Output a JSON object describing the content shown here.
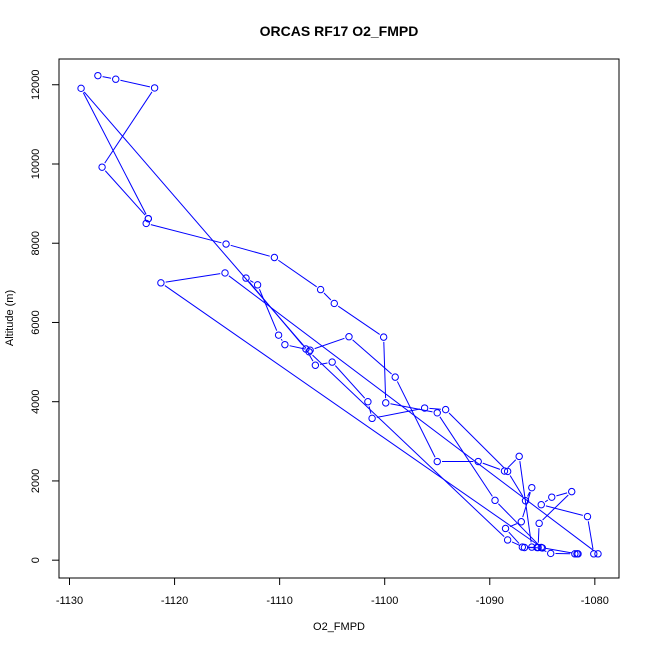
{
  "chart_data": {
    "type": "line",
    "title": "ORCAS RF17 O2_FMPD",
    "xlabel": "O2_FMPD",
    "ylabel": "Altitude (m)",
    "xlim": [
      -1131,
      -1077.7
    ],
    "ylim": [
      -450,
      12650
    ],
    "xticks": [
      -1130,
      -1120,
      -1110,
      -1100,
      -1090,
      -1080
    ],
    "yticks": [
      0,
      2000,
      4000,
      6000,
      8000,
      10000,
      12000
    ],
    "grid": false,
    "legend": "none",
    "marker": "open-circle",
    "series": [
      {
        "color": "#0000ff",
        "x": [
          -1127.3,
          -1125.6,
          -1121.9,
          -1126.9,
          -1122.5,
          -1122.7,
          -1115.1,
          -1110.5,
          -1106.1,
          -1104.8,
          -1100.1,
          -1099.9,
          -1095.0,
          -1089.5,
          -1085.1,
          -1081.7,
          -1081.6,
          -1081.9,
          -1084.2,
          -1085.5,
          -1086.0,
          -1087.2,
          -1088.6,
          -1091.1,
          -1095.0,
          -1099.0,
          -1103.4,
          -1107.1,
          -1109.5,
          -1110.1,
          -1112.1,
          -1113.2,
          -1107.5,
          -1106.6,
          -1105.0,
          -1101.6,
          -1101.2,
          -1096.2,
          -1094.2,
          -1088.3,
          -1086.6,
          -1086.0,
          -1087.0,
          -1088.5,
          -1086.9,
          -1085.4,
          -1085.3,
          -1082.2,
          -1084.1,
          -1085.1,
          -1080.7,
          -1080.1,
          -1079.7,
          -1115.2,
          -1121.3,
          -1085.0,
          -1086.7,
          -1088.3,
          -1107.2,
          -1128.9,
          -1122.5
        ],
        "y": [
          12230,
          12140,
          11920,
          9920,
          8620,
          8500,
          7980,
          7640,
          6830,
          6480,
          5630,
          3970,
          3720,
          1510,
          320,
          160,
          160,
          160,
          170,
          320,
          330,
          2620,
          2250,
          2490,
          2490,
          4620,
          5640,
          5300,
          5440,
          5680,
          6950,
          7120,
          5330,
          4920,
          5000,
          4000,
          3580,
          3840,
          3800,
          2240,
          1500,
          1830,
          970,
          800,
          330,
          320,
          930,
          1730,
          1590,
          1400,
          1100,
          160,
          160,
          7250,
          7000,
          310,
          320,
          510,
          5260,
          11910,
          8620
        ]
      }
    ]
  }
}
